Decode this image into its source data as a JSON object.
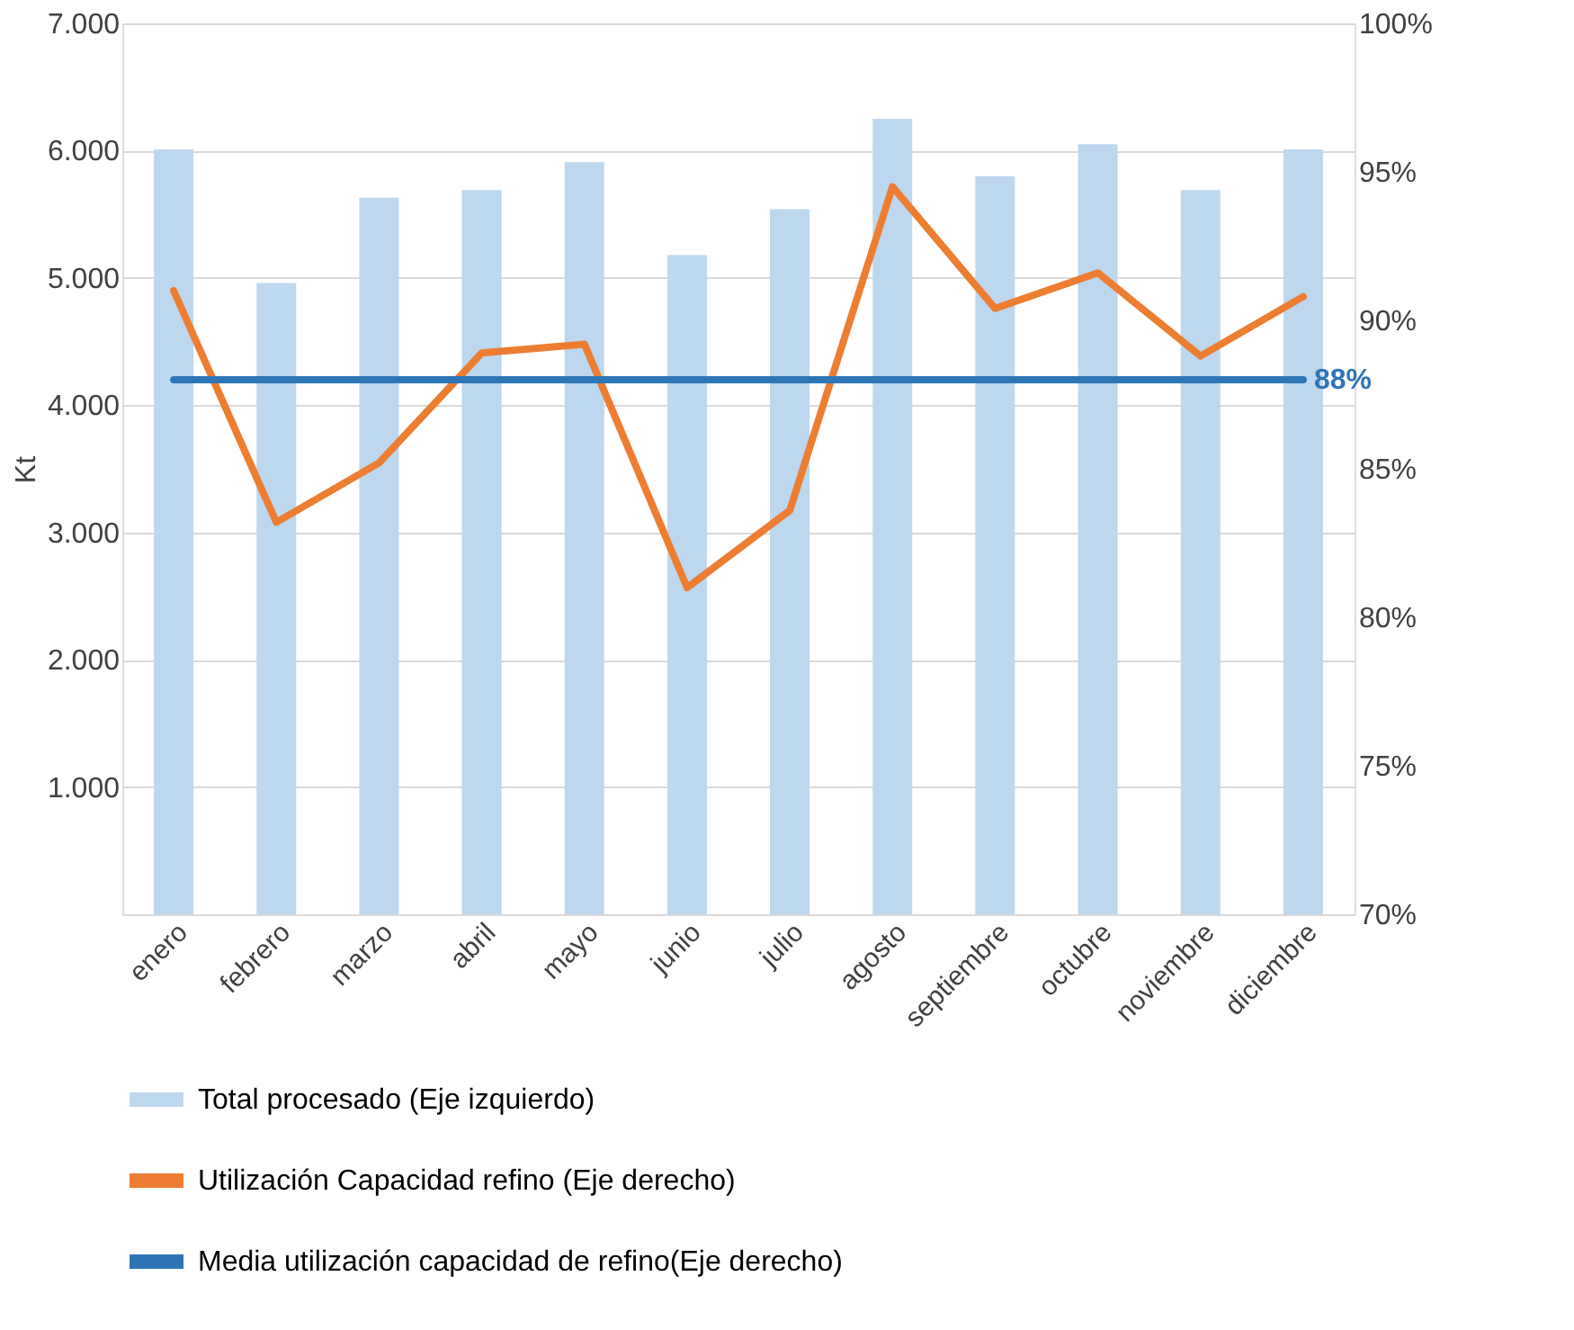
{
  "chart_data": {
    "type": "bar",
    "ylabel": "Kt",
    "categories": [
      "enero",
      "febrero",
      "marzo",
      "abril",
      "mayo",
      "junio",
      "julio",
      "agosto",
      "septiembre",
      "octubre",
      "noviembre",
      "diciembre"
    ],
    "series": [
      {
        "name": "Total procesado (Eje izquierdo)",
        "color": "#bdd7ee",
        "values": [
          6010,
          4960,
          5630,
          5690,
          5910,
          5180,
          5540,
          6250,
          5800,
          6050,
          5690,
          6010
        ]
      },
      {
        "name": "Utilización Capacidad refino (Eje derecho)",
        "type": "line",
        "axis": "y2",
        "color": "#ed7d31",
        "values": [
          91.0,
          83.2,
          85.2,
          88.9,
          89.2,
          81.0,
          83.6,
          94.5,
          90.4,
          91.6,
          88.8,
          90.8
        ]
      },
      {
        "name": "Media utilización capacidad de refino(Eje derecho)",
        "type": "line",
        "axis": "y2",
        "color": "#2e75b6",
        "values": [
          88,
          88,
          88,
          88,
          88,
          88,
          88,
          88,
          88,
          88,
          88,
          88
        ]
      }
    ],
    "annotations": [
      "88%"
    ],
    "ylim": [
      0,
      7000
    ],
    "yticks": [
      {
        "value": 0,
        "label": null
      },
      {
        "value": 1000,
        "label": "1.000"
      },
      {
        "value": 2000,
        "label": "2.000"
      },
      {
        "value": 3000,
        "label": "3.000"
      },
      {
        "value": 4000,
        "label": "4.000"
      },
      {
        "value": 5000,
        "label": "5.000"
      },
      {
        "value": 6000,
        "label": "6.000"
      },
      {
        "value": 7000,
        "label": "7.000"
      }
    ],
    "y2lim": [
      70,
      100
    ],
    "y2ticks": [
      {
        "value": 70,
        "label": "70%"
      },
      {
        "value": 75,
        "label": "75%"
      },
      {
        "value": 80,
        "label": "80%"
      },
      {
        "value": 85,
        "label": "85%"
      },
      {
        "value": 90,
        "label": "90%"
      },
      {
        "value": 95,
        "label": "95%"
      },
      {
        "value": 100,
        "label": "100%"
      }
    ],
    "grid": "y",
    "legend": "bottom",
    "marker": "none",
    "line_style": "solid"
  }
}
